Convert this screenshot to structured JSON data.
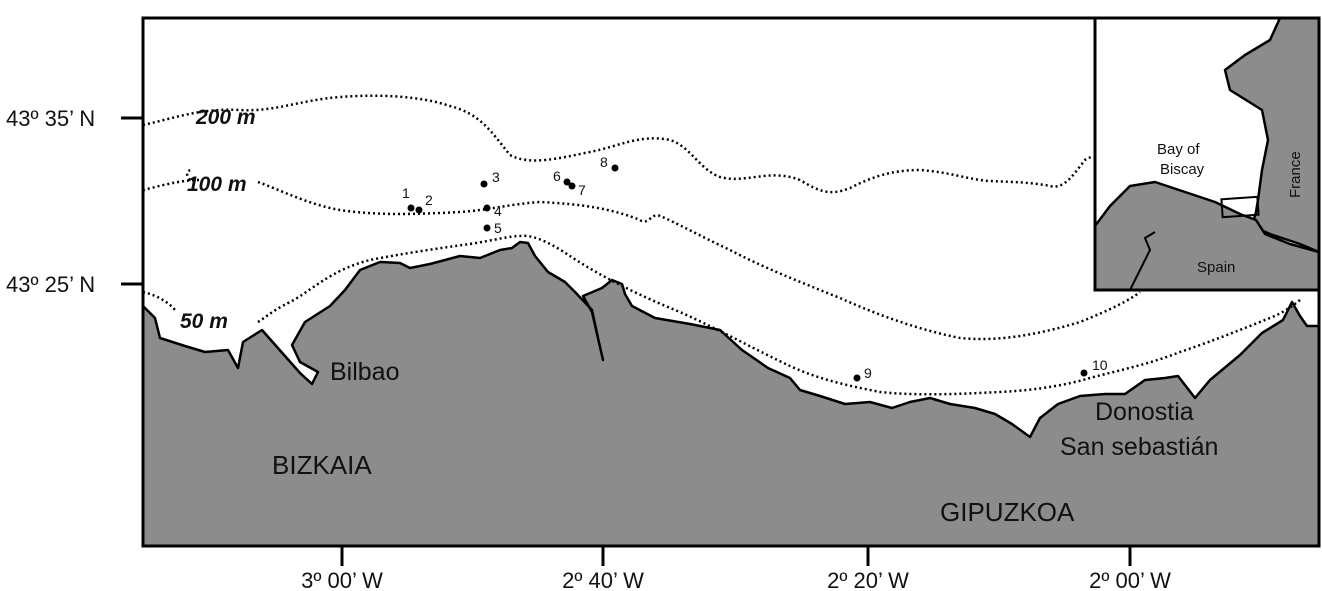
{
  "map": {
    "lat_labels": [
      "43º 35’ N",
      "43º 25’ N"
    ],
    "lon_labels": [
      "3º 00’ W",
      "2º 40’ W",
      "2º 20’ W",
      "2º 00’ W"
    ],
    "contours": [
      "200 m",
      "100 m",
      "50 m"
    ],
    "places": {
      "bilbao": "Bilbao",
      "bizkaia": "BIZKAIA",
      "gipuzkoa": "GIPUZKOA",
      "donostia_1": "Donostia",
      "donostia_2": "San sebastián"
    },
    "sites": [
      "1",
      "2",
      "3",
      "4",
      "5",
      "6",
      "7",
      "8",
      "9",
      "10"
    ],
    "inset": {
      "bay_1": "Bay of",
      "bay_2": "Biscay",
      "france": "France",
      "spain": "Spain"
    },
    "colors": {
      "land": "#8c8c8c",
      "sea": "#ffffff",
      "line": "#000000"
    }
  }
}
